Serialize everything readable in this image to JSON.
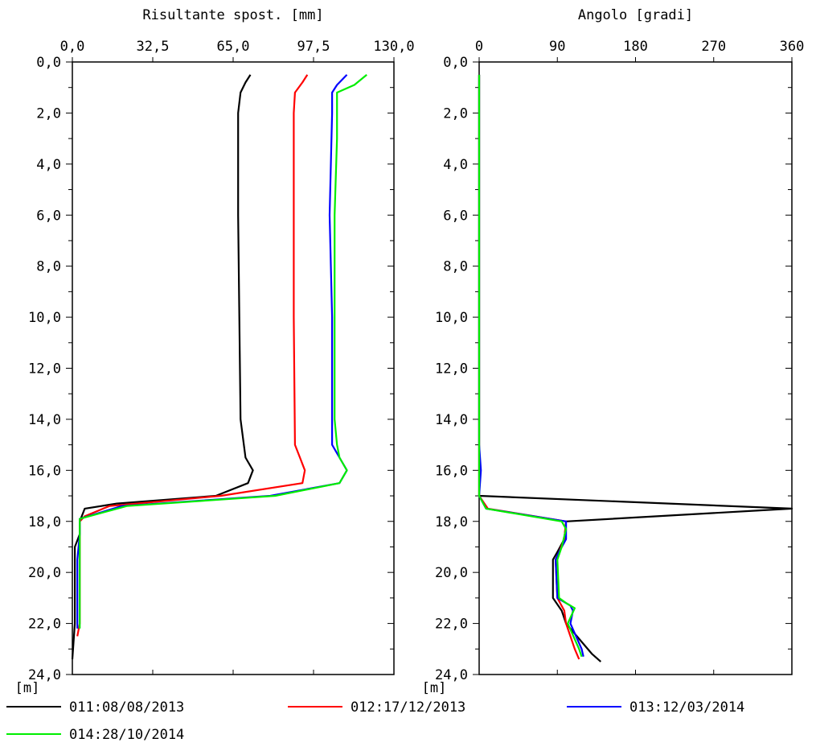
{
  "chart_data": [
    {
      "type": "line",
      "orientation": "vertical-depth",
      "title": "Risultante spost. [mm]",
      "xlim": [
        0,
        130
      ],
      "x_ticks": [
        "0,0",
        "32,5",
        "65,0",
        "97,5",
        "130,0"
      ],
      "ylim": [
        0,
        24
      ],
      "y_ticks": [
        "0,0",
        "2,0",
        "4,0",
        "6,0",
        "8,0",
        "10,0",
        "12,0",
        "14,0",
        "16,0",
        "18,0",
        "20,0",
        "22,0",
        "24,0"
      ],
      "y_unit": "[m]",
      "grid": false,
      "series": [
        {
          "name": "011:08/08/2013",
          "color": "#000000",
          "points": [
            [
              72,
              0.5
            ],
            [
              70,
              0.8
            ],
            [
              68,
              1.2
            ],
            [
              67,
              2
            ],
            [
              67,
              6
            ],
            [
              67.5,
              10
            ],
            [
              68,
              14
            ],
            [
              70,
              15.5
            ],
            [
              73,
              16
            ],
            [
              71,
              16.5
            ],
            [
              58,
              17
            ],
            [
              18,
              17.3
            ],
            [
              5,
              17.5
            ],
            [
              3,
              18
            ],
            [
              3,
              18.5
            ],
            [
              1,
              19
            ],
            [
              1,
              22
            ],
            [
              0,
              23.4
            ]
          ]
        },
        {
          "name": "012:17/12/2013",
          "color": "#ff0000",
          "points": [
            [
              95,
              0.5
            ],
            [
              93,
              0.8
            ],
            [
              90,
              1.2
            ],
            [
              89.5,
              2
            ],
            [
              89.5,
              10
            ],
            [
              90,
              15
            ],
            [
              92,
              15.5
            ],
            [
              94,
              16
            ],
            [
              93,
              16.5
            ],
            [
              60,
              17
            ],
            [
              15,
              17.4
            ],
            [
              5,
              17.8
            ],
            [
              3,
              18
            ],
            [
              3,
              22
            ],
            [
              2,
              22.5
            ]
          ]
        },
        {
          "name": "013:12/03/2014",
          "color": "#0000ff",
          "points": [
            [
              111,
              0.5
            ],
            [
              107,
              0.9
            ],
            [
              105,
              1.2
            ],
            [
              105,
              2
            ],
            [
              104,
              6
            ],
            [
              105,
              10
            ],
            [
              105,
              15
            ],
            [
              108,
              15.5
            ],
            [
              111,
              16
            ],
            [
              108,
              16.5
            ],
            [
              80,
              17
            ],
            [
              20,
              17.4
            ],
            [
              3,
              17.9
            ],
            [
              3,
              18.5
            ],
            [
              2,
              19.5
            ],
            [
              2,
              21
            ],
            [
              2,
              22.2
            ]
          ]
        },
        {
          "name": "014:28/10/2014",
          "color": "#00ee00",
          "points": [
            [
              119,
              0.5
            ],
            [
              114,
              0.9
            ],
            [
              107,
              1.2
            ],
            [
              107,
              3
            ],
            [
              106,
              6
            ],
            [
              106,
              14
            ],
            [
              107,
              15
            ],
            [
              108,
              15.5
            ],
            [
              111,
              16
            ],
            [
              108,
              16.5
            ],
            [
              82,
              17
            ],
            [
              22,
              17.4
            ],
            [
              3,
              17.9
            ],
            [
              3,
              18.5
            ],
            [
              3,
              22.2
            ]
          ]
        }
      ]
    },
    {
      "type": "line",
      "orientation": "vertical-depth",
      "title": "Angolo [gradi]",
      "xlim": [
        0,
        360
      ],
      "x_ticks": [
        "0",
        "90",
        "180",
        "270",
        "360"
      ],
      "ylim": [
        0,
        24
      ],
      "y_ticks": [
        "0,0",
        "2,0",
        "4,0",
        "6,0",
        "8,0",
        "10,0",
        "12,0",
        "14,0",
        "16,0",
        "18,0",
        "20,0",
        "22,0",
        "24,0"
      ],
      "y_unit": "[m]",
      "grid": false,
      "series": [
        {
          "name": "011:08/08/2013",
          "color": "#000000",
          "points": [
            [
              0,
              0.5
            ],
            [
              0,
              17
            ],
            [
              360,
              17.5
            ],
            [
              100,
              18
            ],
            [
              98,
              18.7
            ],
            [
              90,
              19.2
            ],
            [
              85,
              19.5
            ],
            [
              85,
              21
            ],
            [
              95,
              21.5
            ],
            [
              100,
              22
            ],
            [
              130,
              23.2
            ],
            [
              140,
              23.5
            ]
          ]
        },
        {
          "name": "012:17/12/2013",
          "color": "#ff0000",
          "points": [
            [
              0,
              0.5
            ],
            [
              0,
              17
            ],
            [
              10,
              17.5
            ],
            [
              100,
              18
            ],
            [
              98,
              18.7
            ],
            [
              92,
              19.2
            ],
            [
              88,
              19.5
            ],
            [
              90,
              21
            ],
            [
              98,
              21.5
            ],
            [
              100,
              22
            ],
            [
              110,
              23
            ],
            [
              115,
              23.4
            ]
          ]
        },
        {
          "name": "013:12/03/2014",
          "color": "#0000ff",
          "points": [
            [
              0,
              0.5
            ],
            [
              0,
              15
            ],
            [
              2,
              16
            ],
            [
              0,
              17
            ],
            [
              8,
              17.5
            ],
            [
              100,
              18
            ],
            [
              100,
              18.7
            ],
            [
              92,
              19.2
            ],
            [
              88,
              19.5
            ],
            [
              90,
              21
            ],
            [
              105,
              21.3
            ],
            [
              108,
              21.5
            ],
            [
              105,
              22
            ],
            [
              118,
              23
            ],
            [
              120,
              23.3
            ]
          ]
        },
        {
          "name": "014:28/10/2014",
          "color": "#00ee00",
          "points": [
            [
              0,
              0.5
            ],
            [
              0,
              17
            ],
            [
              8,
              17.5
            ],
            [
              95,
              18
            ],
            [
              100,
              18.3
            ],
            [
              95,
              19
            ],
            [
              90,
              19.5
            ],
            [
              92,
              21
            ],
            [
              100,
              21.2
            ],
            [
              110,
              21.4
            ],
            [
              102,
              22
            ],
            [
              115,
              23
            ],
            [
              118,
              23.3
            ]
          ]
        }
      ]
    }
  ]
}
